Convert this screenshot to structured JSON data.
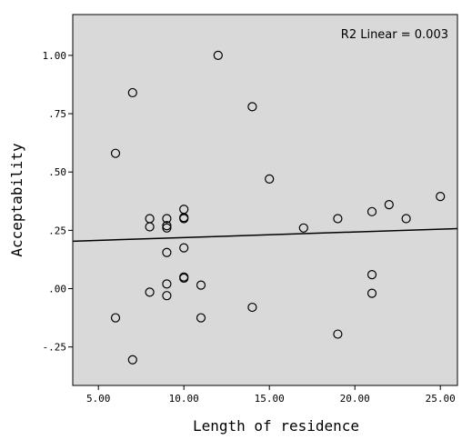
{
  "chart_data": {
    "type": "scatter",
    "xlabel": "Length of residence",
    "ylabel": "Acceptability",
    "annotation": "R2 Linear = 0.003",
    "xlim": [
      3.5,
      26.0
    ],
    "ylim": [
      -0.415,
      1.175
    ],
    "x_ticks": [
      5,
      10,
      15,
      20,
      25
    ],
    "x_tick_labels": [
      "5.00",
      "10.00",
      "15.00",
      "20.00",
      "25.00"
    ],
    "y_ticks": [
      -0.25,
      0,
      0.25,
      0.5,
      0.75,
      1.0
    ],
    "y_tick_labels": [
      "-.25",
      ".00",
      ".25",
      ".50",
      ".75",
      "1.00"
    ],
    "grid": false,
    "plot_background": "#d9d9d9",
    "fit_line": {
      "intercept": 0.195,
      "slope": 0.0024
    },
    "points": [
      {
        "x": 6,
        "y": 0.58
      },
      {
        "x": 6,
        "y": -0.125
      },
      {
        "x": 7,
        "y": 0.84
      },
      {
        "x": 7,
        "y": -0.305
      },
      {
        "x": 8,
        "y": 0.3
      },
      {
        "x": 8,
        "y": 0.265
      },
      {
        "x": 8,
        "y": -0.015
      },
      {
        "x": 9,
        "y": 0.3
      },
      {
        "x": 9,
        "y": 0.27
      },
      {
        "x": 9,
        "y": 0.26
      },
      {
        "x": 9,
        "y": 0.155
      },
      {
        "x": 9,
        "y": 0.02
      },
      {
        "x": 9,
        "y": -0.03
      },
      {
        "x": 10,
        "y": 0.34
      },
      {
        "x": 10,
        "y": 0.305
      },
      {
        "x": 10,
        "y": 0.3
      },
      {
        "x": 10,
        "y": 0.175
      },
      {
        "x": 10,
        "y": 0.05
      },
      {
        "x": 10,
        "y": 0.045
      },
      {
        "x": 11,
        "y": 0.015
      },
      {
        "x": 11,
        "y": -0.125
      },
      {
        "x": 12,
        "y": 1.0
      },
      {
        "x": 14,
        "y": 0.78
      },
      {
        "x": 14,
        "y": -0.08
      },
      {
        "x": 15,
        "y": 0.47
      },
      {
        "x": 17,
        "y": 0.26
      },
      {
        "x": 19,
        "y": 0.3
      },
      {
        "x": 19,
        "y": -0.195
      },
      {
        "x": 21,
        "y": 0.33
      },
      {
        "x": 21,
        "y": 0.06
      },
      {
        "x": 21,
        "y": -0.02
      },
      {
        "x": 22,
        "y": 0.36
      },
      {
        "x": 23,
        "y": 0.3
      },
      {
        "x": 25,
        "y": 0.395
      }
    ]
  }
}
